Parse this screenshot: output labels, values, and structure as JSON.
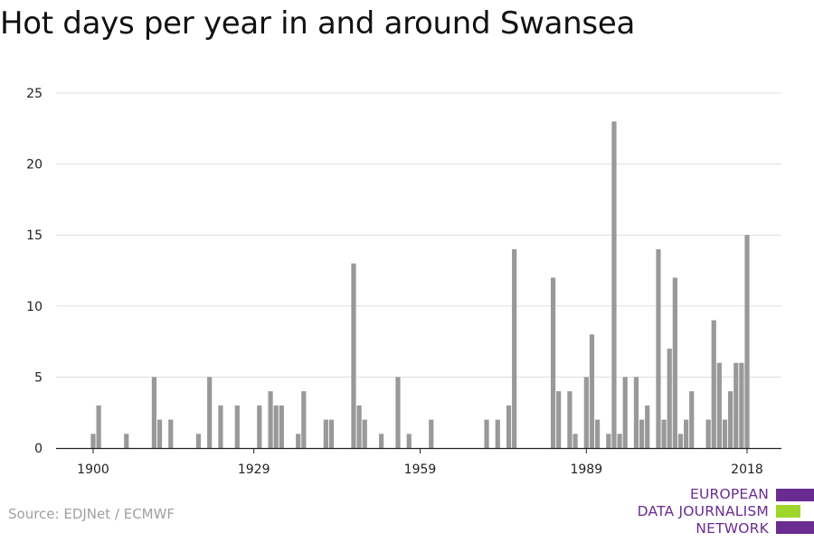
{
  "title": "Hot days per year in and around Swansea",
  "source": "Source: EDJNet / ECMWF",
  "logo": {
    "lines": [
      "EUROPEAN",
      "DATA JOURNALISM",
      "NETWORK"
    ],
    "colors": {
      "purple": "#6b2c91",
      "green": "#9fd62b"
    }
  },
  "chart_data": {
    "type": "bar",
    "title": "Hot days per year in and around Swansea",
    "xlabel": "",
    "ylabel": "",
    "ylim": [
      0,
      25
    ],
    "yticks": [
      0,
      5,
      10,
      15,
      20,
      25
    ],
    "xticks": [
      1900,
      1929,
      1959,
      1989,
      2018
    ],
    "xlim": [
      1894,
      2024
    ],
    "grid": true,
    "bar_color": "#999999",
    "series": [
      {
        "x": [
          1900,
          1901,
          1906,
          1911,
          1912,
          1914,
          1919,
          1921,
          1923,
          1926,
          1930,
          1932,
          1933,
          1934,
          1937,
          1938,
          1942,
          1943,
          1947,
          1948,
          1949,
          1952,
          1955,
          1957,
          1961,
          1971,
          1973,
          1975,
          1976,
          1983,
          1984,
          1986,
          1987,
          1989,
          1990,
          1991,
          1993,
          1994,
          1995,
          1996,
          1998,
          1999,
          2000,
          2002,
          2003,
          2004,
          2005,
          2006,
          2007,
          2008,
          2011,
          2012,
          2013,
          2014,
          2015,
          2016,
          2017,
          2018
        ],
        "values": [
          1,
          3,
          1,
          5,
          2,
          2,
          1,
          5,
          3,
          3,
          3,
          4,
          3,
          3,
          1,
          4,
          2,
          2,
          13,
          3,
          2,
          1,
          5,
          1,
          2,
          2,
          2,
          3,
          14,
          12,
          4,
          4,
          1,
          5,
          8,
          2,
          1,
          23,
          1,
          5,
          5,
          2,
          3,
          14,
          2,
          7,
          12,
          1,
          2,
          4,
          2,
          9,
          6,
          2,
          4,
          6,
          6,
          15
        ]
      }
    ]
  }
}
